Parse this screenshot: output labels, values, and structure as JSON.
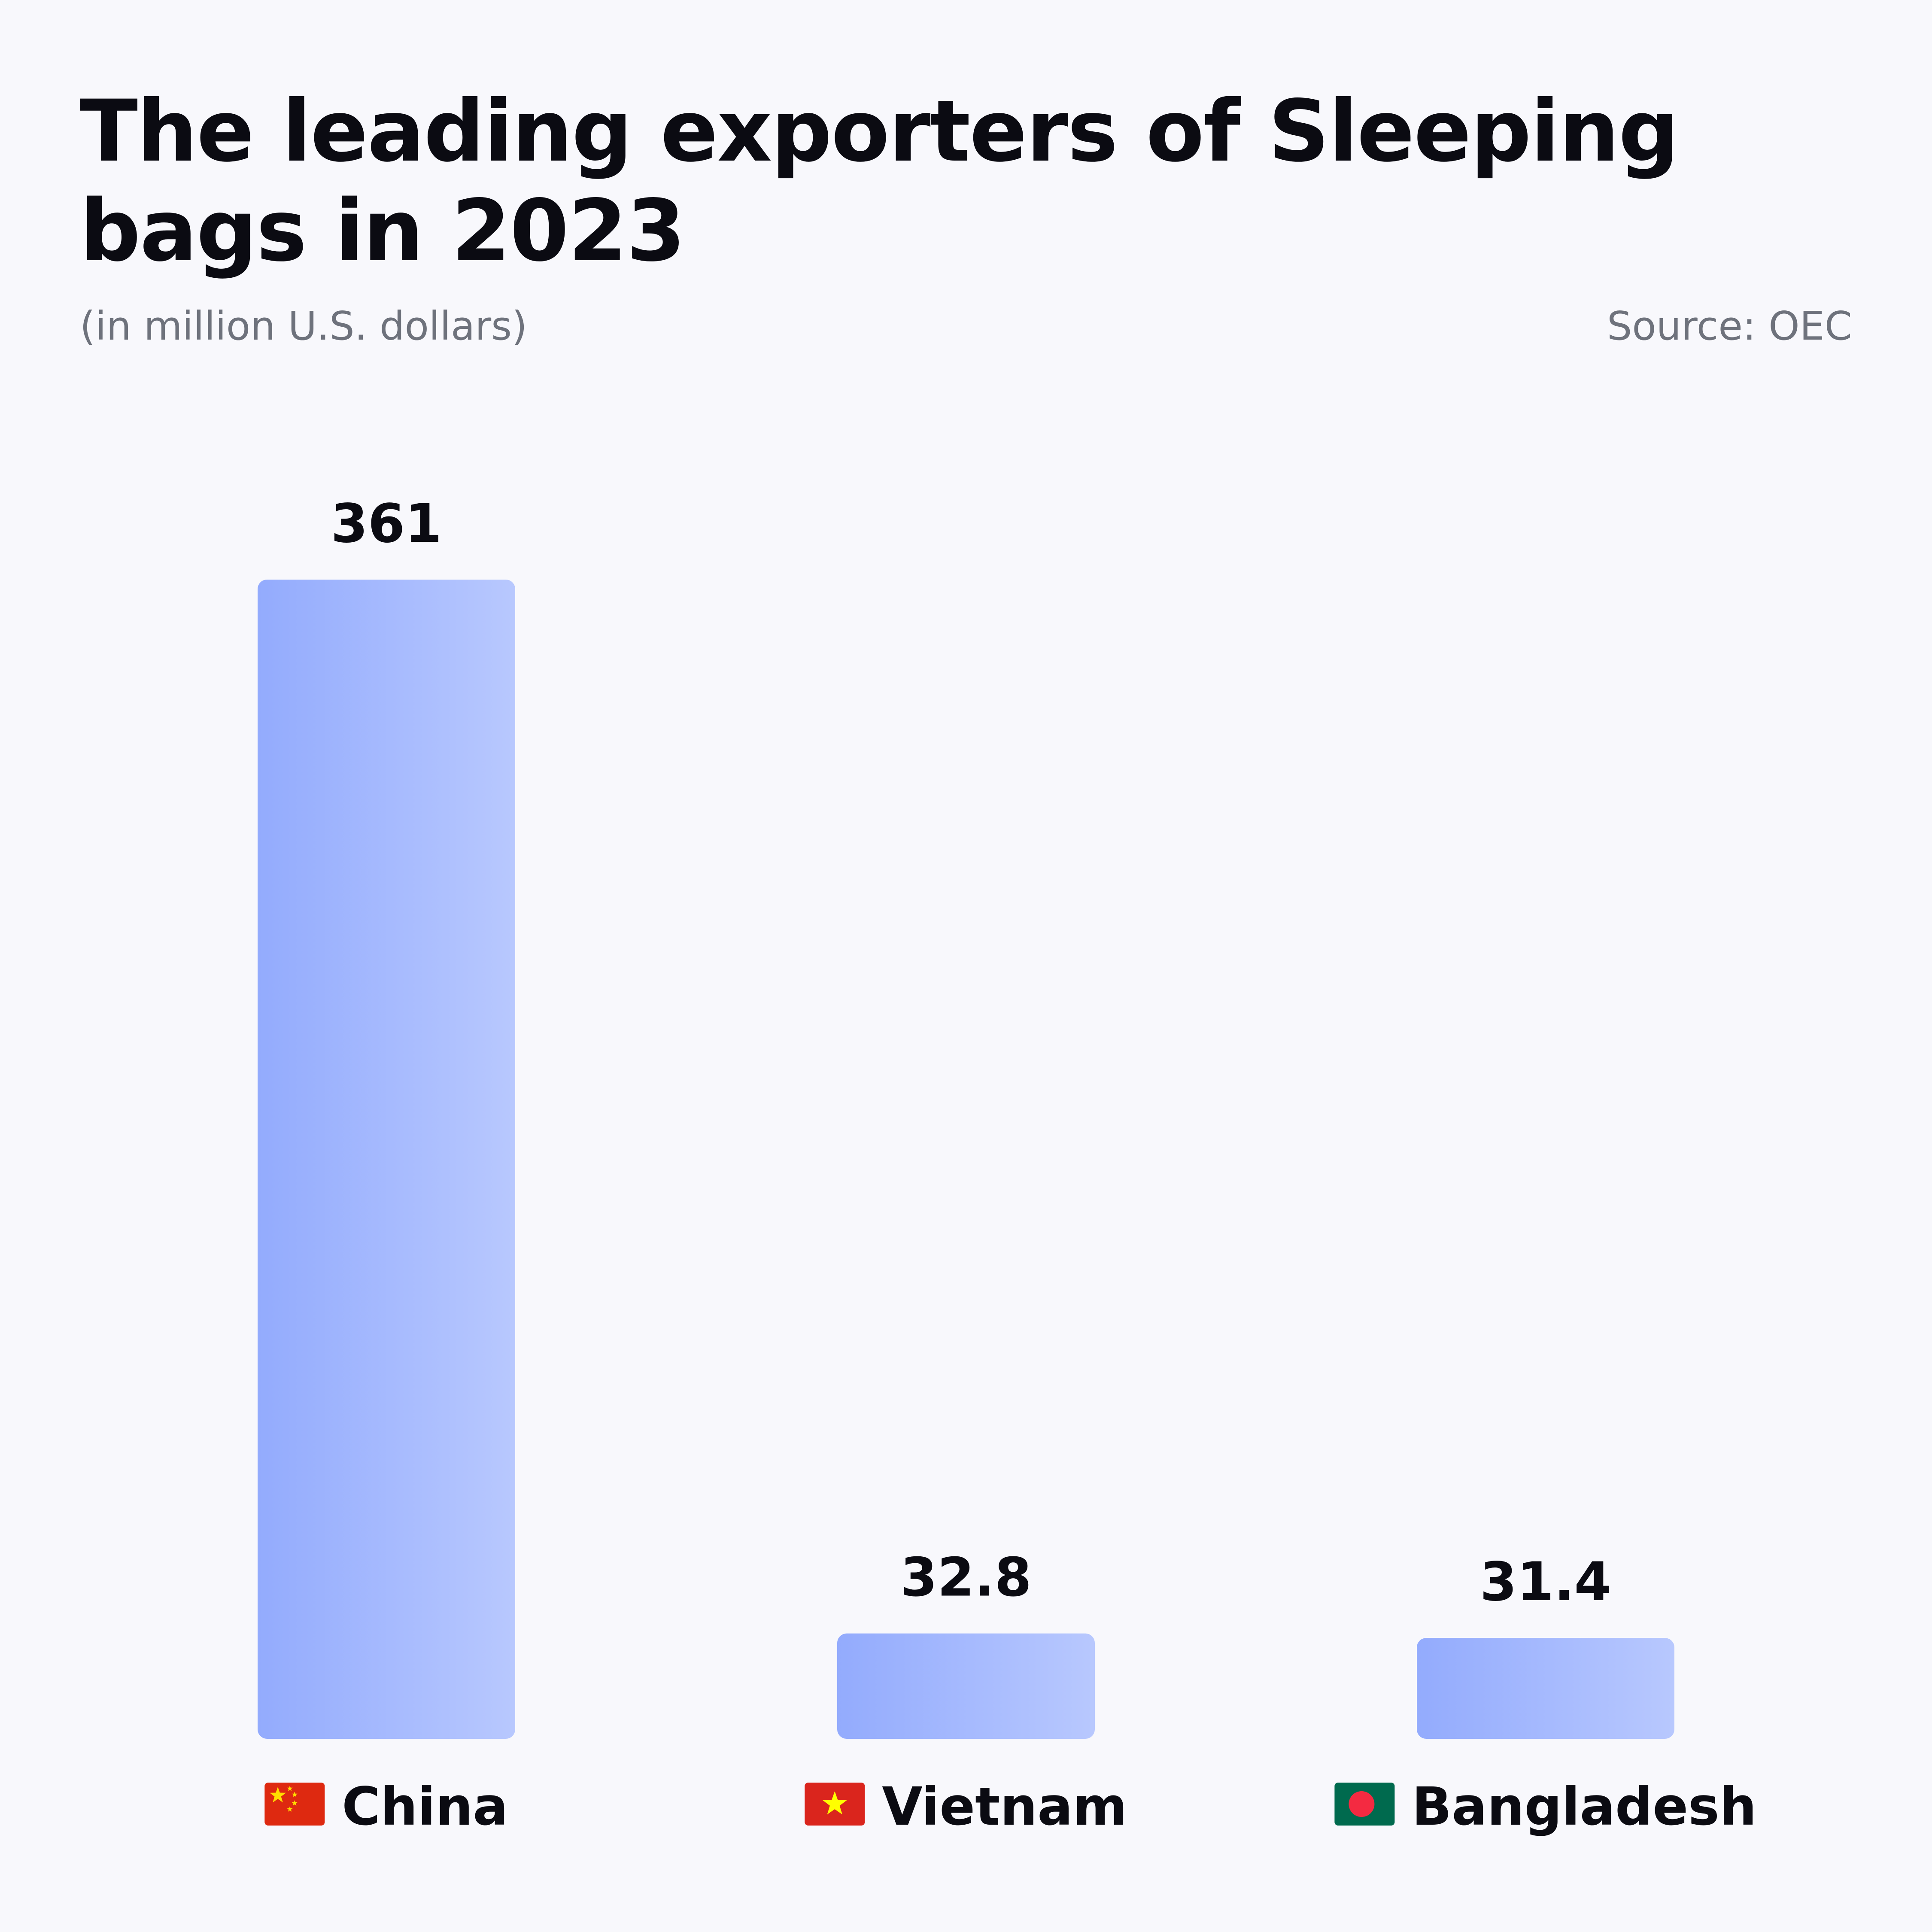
{
  "chart_data": {
    "type": "bar",
    "title": "The leading exporters of Sleeping bags in 2023",
    "subtitle": "(in million U.S. dollars)",
    "source": "Source: OEC",
    "categories": [
      "China",
      "Vietnam",
      "Bangladesh"
    ],
    "values": [
      361,
      32.8,
      31.4
    ],
    "value_labels": [
      "361",
      "32.8",
      "31.4"
    ],
    "flag_icons": [
      "china-flag-icon",
      "vietnam-flag-icon",
      "bangladesh-flag-icon"
    ],
    "xlabel": "",
    "ylabel": "",
    "ylim": [
      0,
      361
    ],
    "grid": false,
    "legend": "none",
    "colors": {
      "bar_start": "#93abfd",
      "bar_end": "#b8c8fe",
      "background": "#f8f8fc",
      "text": "#0b0b12",
      "muted_text": "#6e727c"
    }
  }
}
